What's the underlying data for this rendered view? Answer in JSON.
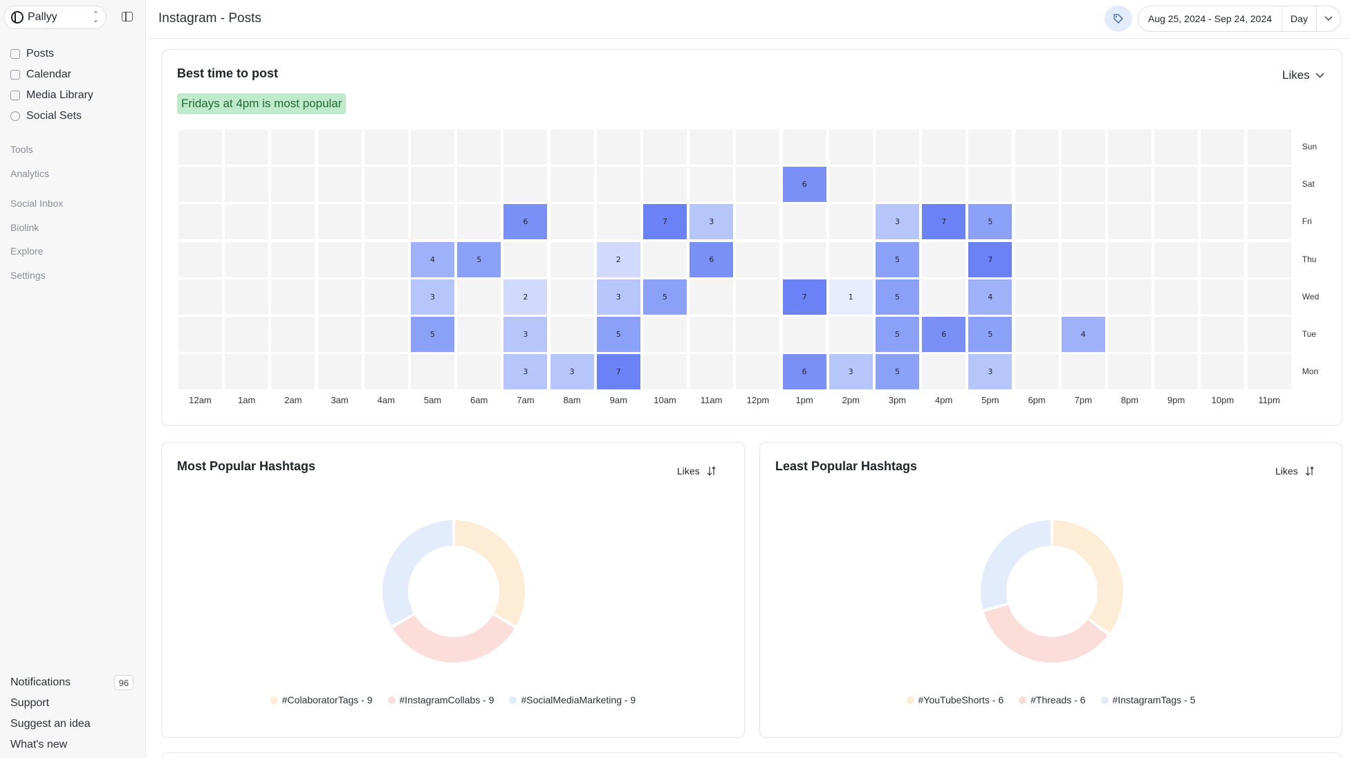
{
  "sidebar": {
    "workspace": "Pallyy",
    "nav": [
      {
        "label": "Posts"
      },
      {
        "label": "Calendar"
      },
      {
        "label": "Media Library"
      },
      {
        "label": "Social Sets"
      }
    ],
    "sections": [
      "Tools",
      "Analytics",
      "Social Inbox",
      "Biolink",
      "Explore",
      "Settings"
    ],
    "bottom": [
      {
        "label": "Notifications",
        "badge": "96"
      },
      {
        "label": "Support"
      },
      {
        "label": "Suggest an idea"
      },
      {
        "label": "What's new"
      }
    ]
  },
  "header": {
    "title": "Instagram - Posts",
    "date_range": "Aug 25, 2024 - Sep 24, 2024",
    "granularity": "Day"
  },
  "best_time": {
    "title": "Best time to post",
    "metric": "Likes",
    "highlight": "Fridays at 4pm is most popular"
  },
  "most_popular": {
    "title": "Most Popular Hashtags",
    "metric": "Likes",
    "legend": [
      "#ColaboratorTags - 9",
      "#InstagramCollabs - 9",
      "#SocialMediaMarketing - 9"
    ]
  },
  "least_popular": {
    "title": "Least Popular Hashtags",
    "metric": "Likes",
    "legend": [
      "#YouTubeShorts - 6",
      "#Threads - 6",
      "#InstagramTags - 5"
    ]
  },
  "colors": {
    "heat_empty": "#f4f4f5",
    "heat_scale": [
      "#e8edfd",
      "#d1dafb",
      "#b6c5fa",
      "#9fb1f9",
      "#8ba1f8",
      "#7a90f6",
      "#6a82f5"
    ],
    "donut": [
      "#fdecd6",
      "#fbddd9",
      "#e2ecfb"
    ]
  },
  "chart_data": [
    {
      "type": "heatmap",
      "title": "Best time to post",
      "x": [
        "12am",
        "1am",
        "2am",
        "3am",
        "4am",
        "5am",
        "6am",
        "7am",
        "8am",
        "9am",
        "10am",
        "11am",
        "12pm",
        "1pm",
        "2pm",
        "3pm",
        "4pm",
        "5pm",
        "6pm",
        "7pm",
        "8pm",
        "9pm",
        "10pm",
        "11pm"
      ],
      "y": [
        "Sun",
        "Sat",
        "Fri",
        "Thu",
        "Wed",
        "Tue",
        "Mon"
      ],
      "values": [
        [
          0,
          0,
          0,
          0,
          0,
          0,
          0,
          0,
          0,
          0,
          0,
          0,
          0,
          0,
          0,
          0,
          0,
          0,
          0,
          0,
          0,
          0,
          0,
          0
        ],
        [
          0,
          0,
          0,
          0,
          0,
          0,
          0,
          0,
          0,
          0,
          0,
          0,
          0,
          6,
          0,
          0,
          0,
          0,
          0,
          0,
          0,
          0,
          0,
          0
        ],
        [
          0,
          0,
          0,
          0,
          0,
          0,
          0,
          6,
          0,
          0,
          7,
          3,
          0,
          0,
          0,
          3,
          7,
          5,
          0,
          0,
          0,
          0,
          0,
          0
        ],
        [
          0,
          0,
          0,
          0,
          0,
          4,
          5,
          0,
          0,
          2,
          0,
          6,
          0,
          0,
          0,
          5,
          0,
          7,
          0,
          0,
          0,
          0,
          0,
          0
        ],
        [
          0,
          0,
          0,
          0,
          0,
          3,
          0,
          2,
          0,
          3,
          5,
          0,
          0,
          7,
          1,
          5,
          0,
          4,
          0,
          0,
          0,
          0,
          0,
          0
        ],
        [
          0,
          0,
          0,
          0,
          0,
          5,
          0,
          3,
          0,
          5,
          0,
          0,
          0,
          0,
          0,
          5,
          6,
          5,
          0,
          4,
          0,
          0,
          0,
          0
        ],
        [
          0,
          0,
          0,
          0,
          0,
          0,
          0,
          3,
          3,
          7,
          0,
          0,
          0,
          6,
          3,
          5,
          0,
          3,
          0,
          0,
          0,
          0,
          0,
          0
        ]
      ]
    },
    {
      "type": "pie",
      "title": "Most Popular Hashtags",
      "categories": [
        "#ColaboratorTags",
        "#InstagramCollabs",
        "#SocialMediaMarketing"
      ],
      "values": [
        9,
        9,
        9
      ]
    },
    {
      "type": "pie",
      "title": "Least Popular Hashtags",
      "categories": [
        "#YouTubeShorts",
        "#Threads",
        "#InstagramTags"
      ],
      "values": [
        6,
        6,
        5
      ]
    }
  ]
}
